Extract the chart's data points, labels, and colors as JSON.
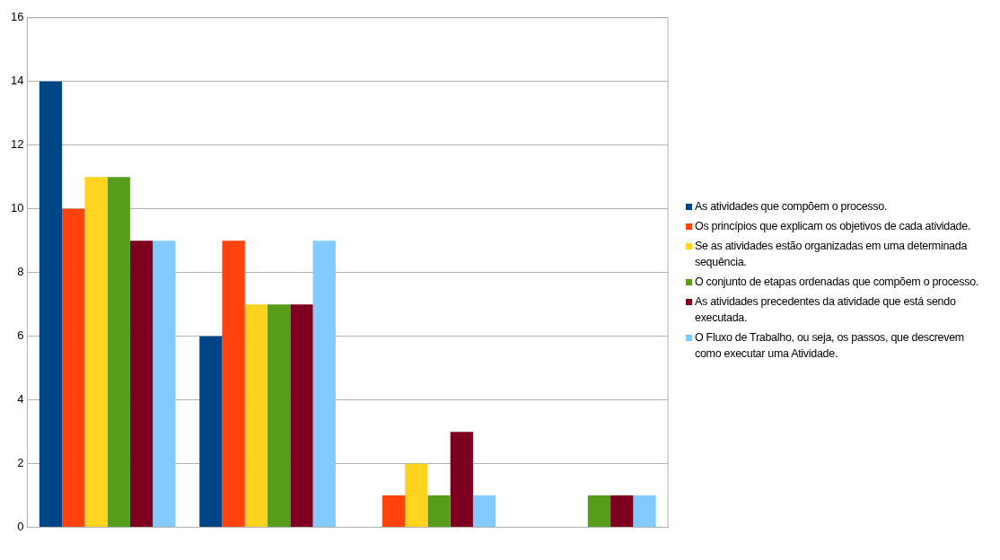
{
  "chart_data": {
    "type": "bar",
    "categories": [
      null,
      null,
      null,
      null
    ],
    "series": [
      {
        "name": "As atividades que compõem o processo.",
        "color": "#004586",
        "values": [
          14,
          6,
          0,
          0
        ]
      },
      {
        "name": "Os princípios que explicam os objetivos de cada atividade.",
        "color": "#ff420e",
        "values": [
          10,
          9,
          1,
          0
        ]
      },
      {
        "name": "Se as atividades estão organizadas em uma determinada sequência.",
        "color": "#ffd320",
        "values": [
          11,
          7,
          2,
          0
        ]
      },
      {
        "name": "O conjunto de etapas ordenadas que compõem o processo.",
        "color": "#579d1c",
        "values": [
          11,
          7,
          1,
          1
        ]
      },
      {
        "name": "As atividades precedentes da atividade que está sendo executada.",
        "color": "#7e0021",
        "values": [
          9,
          7,
          3,
          1
        ]
      },
      {
        "name": "O Fluxo de Trabalho, ou seja, os passos, que descrevem como executar uma Atividade.",
        "color": "#83caff",
        "values": [
          9,
          9,
          1,
          1
        ]
      }
    ],
    "ylim": [
      0,
      16
    ],
    "yticks": [
      0,
      2,
      4,
      6,
      8,
      10,
      12,
      14,
      16
    ],
    "grid": "y",
    "legend": "right"
  }
}
